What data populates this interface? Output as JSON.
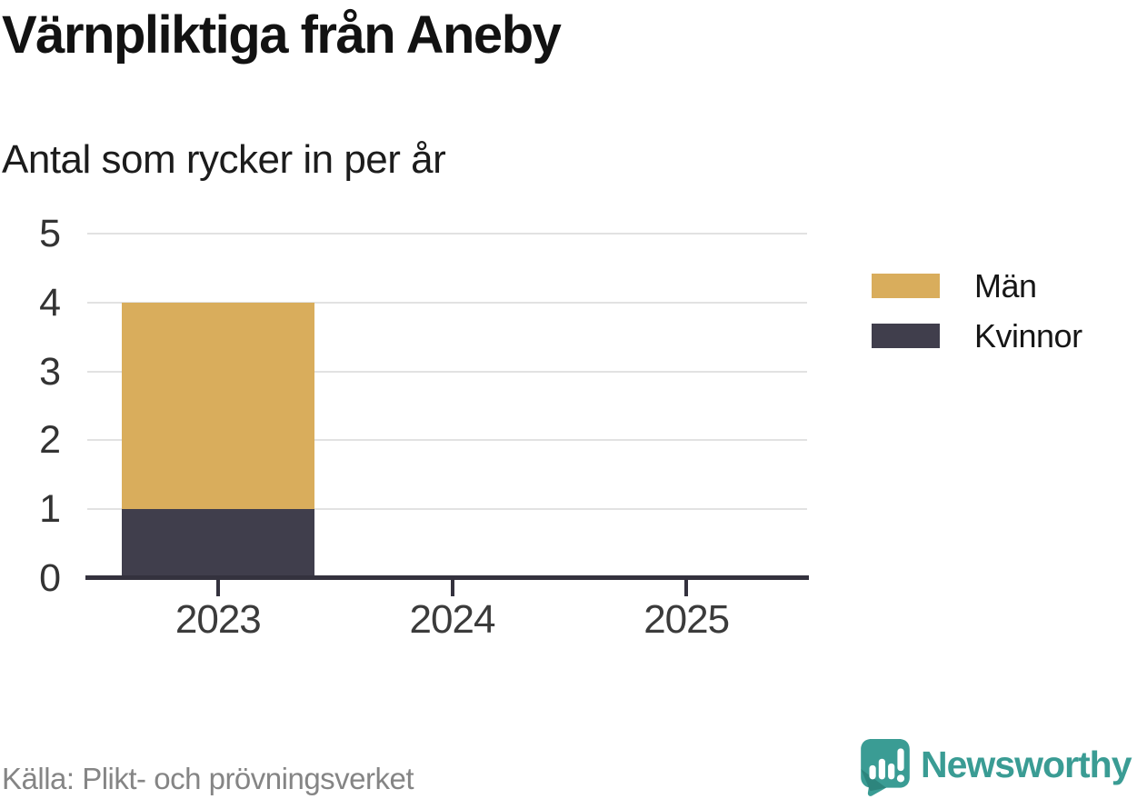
{
  "chart_data": {
    "type": "bar",
    "stacked": true,
    "title": "Värnpliktiga från Aneby",
    "subtitle": "Antal som rycker in per år",
    "categories": [
      "2023",
      "2024",
      "2025"
    ],
    "series": [
      {
        "name": "Män",
        "color": "#d9ad5c",
        "values": [
          3,
          0,
          0
        ]
      },
      {
        "name": "Kvinnor",
        "color": "#403e4c",
        "values": [
          1,
          0,
          0
        ]
      }
    ],
    "stack_order_bottom_to_top": [
      "Kvinnor",
      "Män"
    ],
    "totals": [
      4,
      0,
      0
    ],
    "xlabel": "",
    "ylabel": "",
    "ylim": [
      0,
      5
    ],
    "yticks": [
      0,
      1,
      2,
      3,
      4,
      5
    ],
    "grid": "horizontal-light",
    "legend_position": "right",
    "source": "Källa: Plikt- och prövningsverket"
  },
  "legend": {
    "items": [
      {
        "label": "Män",
        "color": "#d9ad5c"
      },
      {
        "label": "Kvinnor",
        "color": "#403e4c"
      }
    ]
  },
  "brand": {
    "name": "Newsworthy",
    "color": "#3a9c94"
  },
  "colors": {
    "axis": "#34323e",
    "gridline": "#e2e2e2",
    "title_text": "#121212",
    "tick_text": "#3b3b3b",
    "source_text": "#858585"
  }
}
